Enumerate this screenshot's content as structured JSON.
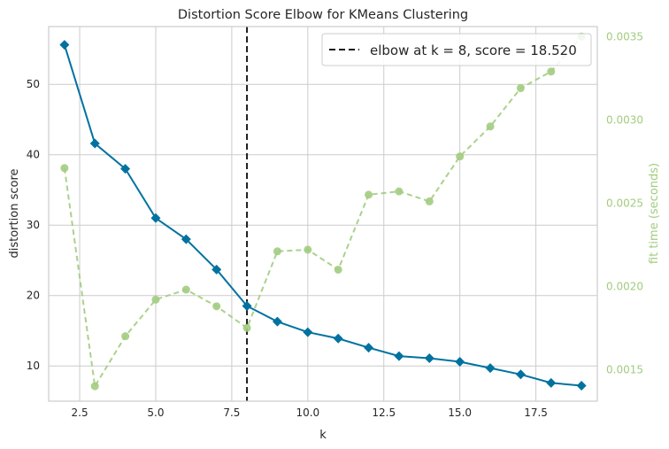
{
  "chart_data": {
    "type": "line",
    "title": "Distortion Score Elbow for KMeans Clustering",
    "xlabel": "k",
    "ylabel": "distortion score",
    "y2label": "fit time (seconds)",
    "xlim": [
      1.48,
      19.52
    ],
    "ylim": [
      5.0,
      58.2
    ],
    "y2lim": [
      0.00131,
      0.00356
    ],
    "xticks": [
      2.5,
      5.0,
      7.5,
      10.0,
      12.5,
      15.0,
      17.5
    ],
    "xtick_labels": [
      "2.5",
      "5.0",
      "7.5",
      "10.0",
      "12.5",
      "15.0",
      "17.5"
    ],
    "yticks": [
      10,
      20,
      30,
      40,
      50
    ],
    "ytick_labels": [
      "10",
      "20",
      "30",
      "40",
      "50"
    ],
    "y2ticks": [
      0.0015,
      0.002,
      0.0025,
      0.003,
      0.0035
    ],
    "y2tick_labels": [
      "0.0015",
      "0.0020",
      "0.0025",
      "0.0030",
      "0.0035"
    ],
    "grid": true,
    "legend_placement": "top-right",
    "elbow": {
      "k": 8,
      "score": 18.52,
      "legend_label": "elbow at k = 8, score = 18.520"
    },
    "series": [
      {
        "name": "distortion score",
        "axis": "left",
        "color": "#0072a0",
        "marker": "diamond",
        "x": [
          2,
          3,
          4,
          5,
          6,
          7,
          8,
          9,
          10,
          11,
          12,
          13,
          14,
          15,
          16,
          17,
          18,
          19
        ],
        "values": [
          55.6,
          41.6,
          38.0,
          31.0,
          28.0,
          23.7,
          18.52,
          16.3,
          14.8,
          13.9,
          12.6,
          11.4,
          11.1,
          10.6,
          9.7,
          8.8,
          7.6,
          7.2
        ]
      },
      {
        "name": "fit time (seconds)",
        "axis": "right",
        "color": "#a2cc7f",
        "marker": "circle",
        "x": [
          2,
          3,
          4,
          5,
          6,
          7,
          8,
          9,
          10,
          11,
          12,
          13,
          14,
          15,
          16,
          17,
          18,
          19
        ],
        "values": [
          0.00271,
          0.0014,
          0.0017,
          0.00192,
          0.00198,
          0.00188,
          0.00175,
          0.00221,
          0.00222,
          0.0021,
          0.00255,
          0.00257,
          0.00251,
          0.00278,
          0.00296,
          0.00319,
          0.00329,
          0.0035
        ]
      }
    ]
  }
}
